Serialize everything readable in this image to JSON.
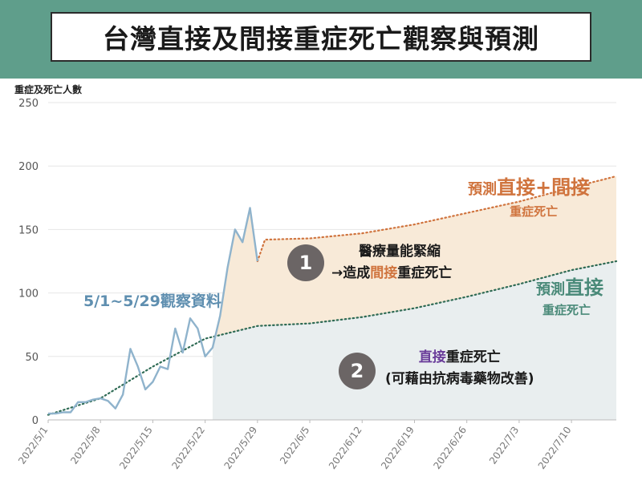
{
  "header": {
    "title": "台灣直接及間接重症死亡觀察與預測"
  },
  "colors": {
    "banner": "#5f9e8b",
    "observed": "#8fb3cc",
    "combined_forecast": "#d0743e",
    "direct_forecast": "#2f6b55",
    "combined_fill": "#f8ead8",
    "direct_fill": "#e9eeef"
  },
  "chart_data": {
    "type": "line",
    "ylabel": "重症及死亡人數",
    "ylim": [
      0,
      250
    ],
    "yticks": [
      "0",
      "50",
      "100",
      "150",
      "200",
      "250"
    ],
    "xticks": [
      "2022/5/1",
      "2022/5/8",
      "2022/5/15",
      "2022/5/22",
      "2022/5/29",
      "2022/6/5",
      "2022/6/12",
      "2022/6/19",
      "2022/6/26",
      "2022/7/3",
      "2022/7/10"
    ],
    "x_range": [
      "2022/5/1",
      "2022/7/16"
    ],
    "grid": "horizontal",
    "series": [
      {
        "kind": "observed",
        "x": [
          "2022/5/1",
          "2022/5/2",
          "2022/5/3",
          "2022/5/4",
          "2022/5/5",
          "2022/5/6",
          "2022/5/7",
          "2022/5/8",
          "2022/5/9",
          "2022/5/10",
          "2022/5/11",
          "2022/5/12",
          "2022/5/13",
          "2022/5/14",
          "2022/5/15",
          "2022/5/16",
          "2022/5/17",
          "2022/5/18",
          "2022/5/19",
          "2022/5/20",
          "2022/5/21",
          "2022/5/22",
          "2022/5/23",
          "2022/5/24",
          "2022/5/25",
          "2022/5/26",
          "2022/5/27",
          "2022/5/28",
          "2022/5/29"
        ],
        "values": [
          5,
          5,
          6,
          6,
          14,
          14,
          16,
          17,
          15,
          9,
          20,
          56,
          42,
          24,
          30,
          42,
          40,
          72,
          53,
          80,
          72,
          50,
          57,
          82,
          120,
          150,
          140,
          167,
          125
        ]
      },
      {
        "kind": "direct_forecast",
        "x": [
          "2022/5/1",
          "2022/5/8",
          "2022/5/15",
          "2022/5/22",
          "2022/5/29",
          "2022/6/5",
          "2022/6/12",
          "2022/6/19",
          "2022/6/26",
          "2022/7/3",
          "2022/7/10",
          "2022/7/16"
        ],
        "values": [
          4,
          17,
          42,
          64,
          74,
          76,
          81,
          88,
          97,
          107,
          118,
          125
        ]
      },
      {
        "kind": "combined_forecast",
        "x": [
          "2022/5/29",
          "2022/5/30",
          "2022/6/5",
          "2022/6/12",
          "2022/6/19",
          "2022/6/26",
          "2022/7/3",
          "2022/7/10",
          "2022/7/16"
        ],
        "values": [
          125,
          142,
          143,
          147,
          154,
          163,
          172,
          183,
          192
        ]
      }
    ],
    "shaded_regions": [
      {
        "kind": "combined_fill",
        "x_start": "2022/5/23",
        "x_end": "2022/7/16"
      },
      {
        "kind": "direct_fill",
        "x_start": "2022/5/23",
        "x_end": "2022/7/16"
      }
    ],
    "annotations": {
      "observed_label": "5/1~5/29觀察資料",
      "combined_label": {
        "prefix": "預測",
        "direct": "直接",
        "plus": "+",
        "indirect": "間接",
        "line2": "重症死亡"
      },
      "direct_label": {
        "prefix": "預測",
        "direct": "直接",
        "line2": "重症死亡"
      },
      "note1": {
        "number": "1",
        "line1": "醫療量能緊縮",
        "line2_a": "→造成",
        "line2_hl": "間接",
        "line2_b": "重症死亡"
      },
      "note2": {
        "number": "2",
        "line1_hl": "直接",
        "line1_b": "重症死亡",
        "line2": "(可藉由抗病毒藥物改善)"
      }
    }
  }
}
